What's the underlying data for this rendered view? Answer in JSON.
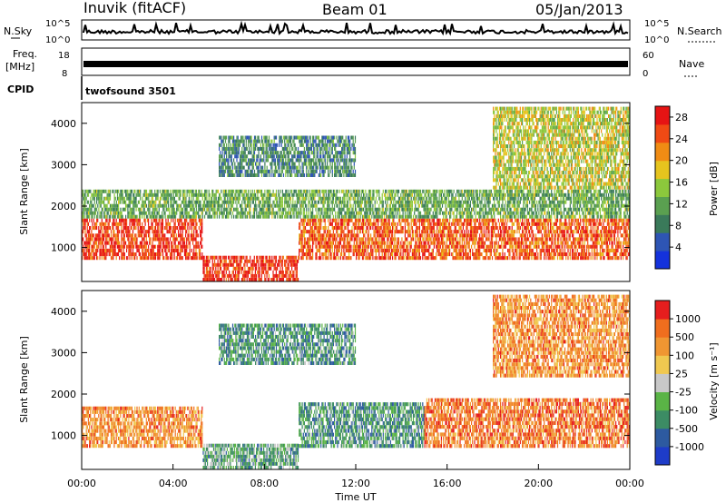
{
  "header": {
    "station": "Inuvik (fitACF)",
    "beam": "Beam 01",
    "date": "05/Jan/2013"
  },
  "top_panels": {
    "nsky_label": "N.Sky",
    "nsky_ticks": [
      "10^5",
      "10^0"
    ],
    "nsearch_label": "N.Search",
    "nsearch_ticks": [
      "10^5",
      "10^0"
    ],
    "freq_label": "Freq.",
    "freq_unit": "[MHz]",
    "freq_ticks": [
      "18",
      "8"
    ],
    "nave_label": "Nave",
    "nave_ticks": [
      "60",
      "0"
    ],
    "cpid_label": "CPID",
    "cpid_value": "twofsound 3501"
  },
  "chart_data": [
    {
      "type": "heatmap",
      "name": "power",
      "ylabel": "Slant Range [km]",
      "ylim": [
        180,
        4500
      ],
      "yticks": [
        "1000",
        "2000",
        "3000",
        "4000"
      ],
      "ytick_values": [
        1000,
        2000,
        3000,
        4000
      ],
      "xlim": [
        0,
        24
      ],
      "colorbar": {
        "label": "Power [dB]",
        "ticks": [
          "28",
          "24",
          "20",
          "16",
          "12",
          "8",
          "4"
        ],
        "tick_values": [
          28,
          24,
          20,
          16,
          12,
          8,
          4
        ],
        "range": [
          0,
          30
        ],
        "colors": [
          "#1432dc",
          "#2e55b4",
          "#3a7a5a",
          "#5aa050",
          "#8cc83c",
          "#e6c41e",
          "#f08c14",
          "#f04a14",
          "#e61414"
        ]
      },
      "bands": [
        {
          "t0": 0.0,
          "t1": 5.3,
          "r0": 700,
          "r1": 1700,
          "level": 0.88
        },
        {
          "t0": 5.3,
          "t1": 9.5,
          "r0": 180,
          "r1": 800,
          "level": 0.9
        },
        {
          "t0": 9.5,
          "t1": 24.0,
          "r0": 700,
          "r1": 1700,
          "level": 0.82
        },
        {
          "t0": 0.0,
          "t1": 24.0,
          "r0": 1700,
          "r1": 2400,
          "level": 0.4
        },
        {
          "t0": 6.0,
          "t1": 12.0,
          "r0": 2700,
          "r1": 3700,
          "level": 0.3
        },
        {
          "t0": 18.0,
          "t1": 24.0,
          "r0": 2400,
          "r1": 4400,
          "level": 0.55
        }
      ]
    },
    {
      "type": "heatmap",
      "name": "velocity",
      "ylabel": "Slant Range [km]",
      "ylim": [
        180,
        4500
      ],
      "yticks": [
        "1000",
        "2000",
        "3000",
        "4000"
      ],
      "ytick_values": [
        1000,
        2000,
        3000,
        4000
      ],
      "xlim": [
        0,
        24
      ],
      "xticks": [
        "00:00",
        "04:00",
        "08:00",
        "12:00",
        "16:00",
        "20:00",
        "00:00"
      ],
      "xtick_values": [
        0,
        4,
        8,
        12,
        16,
        20,
        24
      ],
      "xlabel": "Time UT",
      "colorbar": {
        "label": "Velocity [m s⁻¹]",
        "ticks": [
          "1000",
          "500",
          "100",
          "25",
          "-25",
          "-100",
          "-500",
          "-1000"
        ],
        "tick_values": [
          1000,
          500,
          100,
          25,
          -25,
          -100,
          -500,
          -1000
        ],
        "colors": [
          "#1e3cc8",
          "#2d5aa0",
          "#3c8c64",
          "#5ab446",
          "#c8c8c8",
          "#f0c850",
          "#f09632",
          "#f06e1e",
          "#e61e1e"
        ]
      },
      "bands": [
        {
          "t0": 0.0,
          "t1": 5.3,
          "r0": 700,
          "r1": 1700,
          "level": 0.75
        },
        {
          "t0": 5.3,
          "t1": 9.5,
          "r0": 180,
          "r1": 800,
          "level": 0.35
        },
        {
          "t0": 9.5,
          "t1": 15.0,
          "r0": 700,
          "r1": 1800,
          "level": 0.3
        },
        {
          "t0": 15.0,
          "t1": 24.0,
          "r0": 700,
          "r1": 1900,
          "level": 0.8
        },
        {
          "t0": 6.0,
          "t1": 12.0,
          "r0": 2700,
          "r1": 3700,
          "level": 0.3
        },
        {
          "t0": 18.0,
          "t1": 24.0,
          "r0": 2400,
          "r1": 4400,
          "level": 0.75
        }
      ]
    }
  ]
}
